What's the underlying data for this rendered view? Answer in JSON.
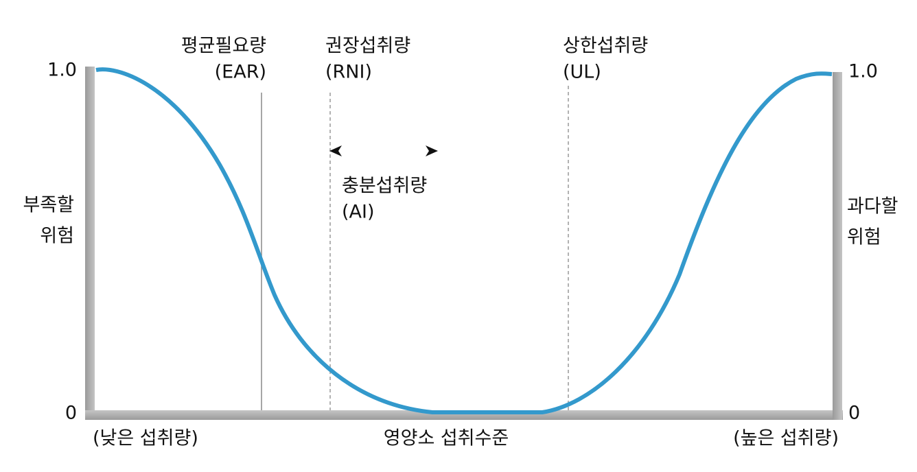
{
  "left_axis": {
    "top_tick": "1.0",
    "bottom_tick": "0",
    "label_line1": "부족할",
    "label_line2": "위험"
  },
  "right_axis": {
    "top_tick": "1.0",
    "bottom_tick": "0",
    "label_line1": "과다할",
    "label_line2": "위험"
  },
  "bottom_axis": {
    "left_label": "(낮은 섭취량)",
    "center_label": "영양소 섭취수준",
    "right_label": "(높은 섭취량)"
  },
  "markers": [
    {
      "name": "평균필요량",
      "abbr": "(EAR)"
    },
    {
      "name": "권장섭취량",
      "abbr": "(RNI)"
    },
    {
      "name": "상한섭취량",
      "abbr": "(UL)"
    }
  ],
  "range_label": {
    "name": "충분섭취량",
    "abbr": "(AI)"
  }
}
